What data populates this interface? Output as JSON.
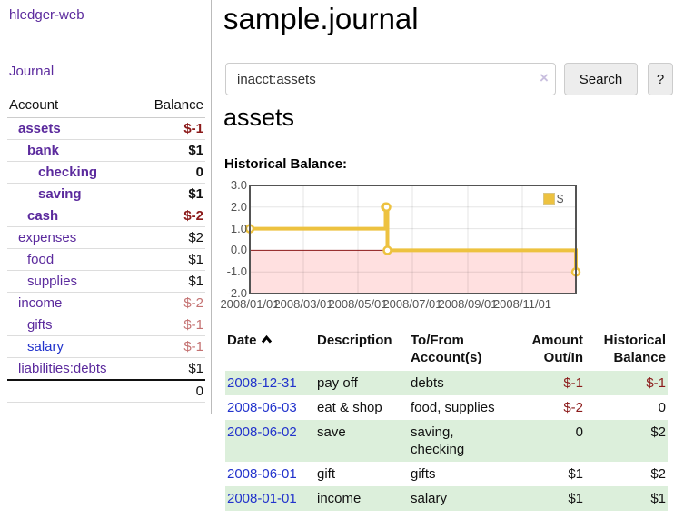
{
  "colors": {
    "link_purple": "#5b2a9d",
    "link_blue": "#2233cc",
    "negative": "#8b1a1a",
    "negative_faded": "#c47272",
    "series_gold": "#edc240",
    "row_stripe_green": "#dcefdb",
    "chart_border": "#545454",
    "zero_line": "#8b1a1a"
  },
  "sidebar": {
    "app_title": "hledger-web",
    "journal_link": "Journal",
    "accounts": {
      "col_account": "Account",
      "col_balance": "Balance",
      "rows": [
        {
          "label": "assets",
          "indent": 1,
          "bold": true,
          "style": "visited",
          "balance": "$-1",
          "balance_style": "negative"
        },
        {
          "label": "bank",
          "indent": 2,
          "bold": true,
          "style": "visited",
          "balance": "$1",
          "balance_style": "normal"
        },
        {
          "label": "checking",
          "indent": 3,
          "bold": true,
          "style": "visited",
          "balance": "0",
          "balance_style": "normal"
        },
        {
          "label": "saving",
          "indent": 3,
          "bold": true,
          "style": "visited",
          "balance": "$1",
          "balance_style": "normal"
        },
        {
          "label": "cash",
          "indent": 2,
          "bold": true,
          "style": "visited",
          "balance": "$-2",
          "balance_style": "negative"
        },
        {
          "label": "expenses",
          "indent": 1,
          "bold": false,
          "style": "visited",
          "balance": "$2",
          "balance_style": "normal"
        },
        {
          "label": "food",
          "indent": 2,
          "bold": false,
          "style": "visited",
          "balance": "$1",
          "balance_style": "normal"
        },
        {
          "label": "supplies",
          "indent": 2,
          "bold": false,
          "style": "visited",
          "balance": "$1",
          "balance_style": "normal"
        },
        {
          "label": "income",
          "indent": 1,
          "bold": false,
          "style": "visited",
          "balance": "$-2",
          "balance_style": "negative-faded"
        },
        {
          "label": "gifts",
          "indent": 2,
          "bold": false,
          "style": "visited",
          "balance": "$-1",
          "balance_style": "negative-faded"
        },
        {
          "label": "salary",
          "indent": 2,
          "bold": false,
          "style": "unvisited",
          "balance": "$-1",
          "balance_style": "negative-faded"
        },
        {
          "label": "liabilities:debts",
          "indent": 1,
          "bold": false,
          "style": "visited",
          "balance": "$1",
          "balance_style": "normal"
        }
      ],
      "total": "0"
    }
  },
  "header": {
    "title": "sample.journal"
  },
  "search": {
    "query": "inacct:assets",
    "clear_icon": "×",
    "search_button_label": "Search",
    "help_button_label": "?"
  },
  "account_page": {
    "heading": "assets",
    "chart_title": "Historical Balance:"
  },
  "chart_data": {
    "type": "line",
    "step": true,
    "title": "Historical Balance:",
    "series": [
      {
        "name": "$",
        "color": "#edc240",
        "points": [
          [
            "2008-01-01",
            1
          ],
          [
            "2008-06-01",
            2
          ],
          [
            "2008-06-02",
            2
          ],
          [
            "2008-06-03",
            0
          ],
          [
            "2008-12-31",
            -1
          ]
        ]
      }
    ],
    "ylim": [
      -2,
      3
    ],
    "yticks": [
      "3.0",
      "2.0",
      "1.0",
      "0.0",
      "-1.0",
      "-2.0"
    ],
    "xticks": [
      "2008/01/01",
      "2008/03/01",
      "2008/05/01",
      "2008/07/01",
      "2008/09/01",
      "2008/11/01"
    ],
    "xrange": [
      "2008-01-01",
      "2008-12-31"
    ],
    "legend_position": "top-right",
    "grid": true,
    "negative_region": true
  },
  "register": {
    "headers": {
      "date": "Date",
      "description": "Description",
      "accounts": "To/From Account(s)",
      "amount": "Amount Out/In",
      "balance": "Historical Balance"
    },
    "sort": {
      "column": "date",
      "direction": "ascending"
    },
    "rows": [
      {
        "date": "2008-12-31",
        "description": "pay off",
        "accounts": "debts",
        "amount": "$-1",
        "balance": "$-1"
      },
      {
        "date": "2008-06-03",
        "description": "eat & shop",
        "accounts": "food, supplies",
        "amount": "$-2",
        "balance": "0"
      },
      {
        "date": "2008-06-02",
        "description": "save",
        "accounts": "saving, checking",
        "amount": "0",
        "balance": "$2"
      },
      {
        "date": "2008-06-01",
        "description": "gift",
        "accounts": "gifts",
        "amount": "$1",
        "balance": "$2"
      },
      {
        "date": "2008-01-01",
        "description": "income",
        "accounts": "salary",
        "amount": "$1",
        "balance": "$1"
      }
    ]
  }
}
